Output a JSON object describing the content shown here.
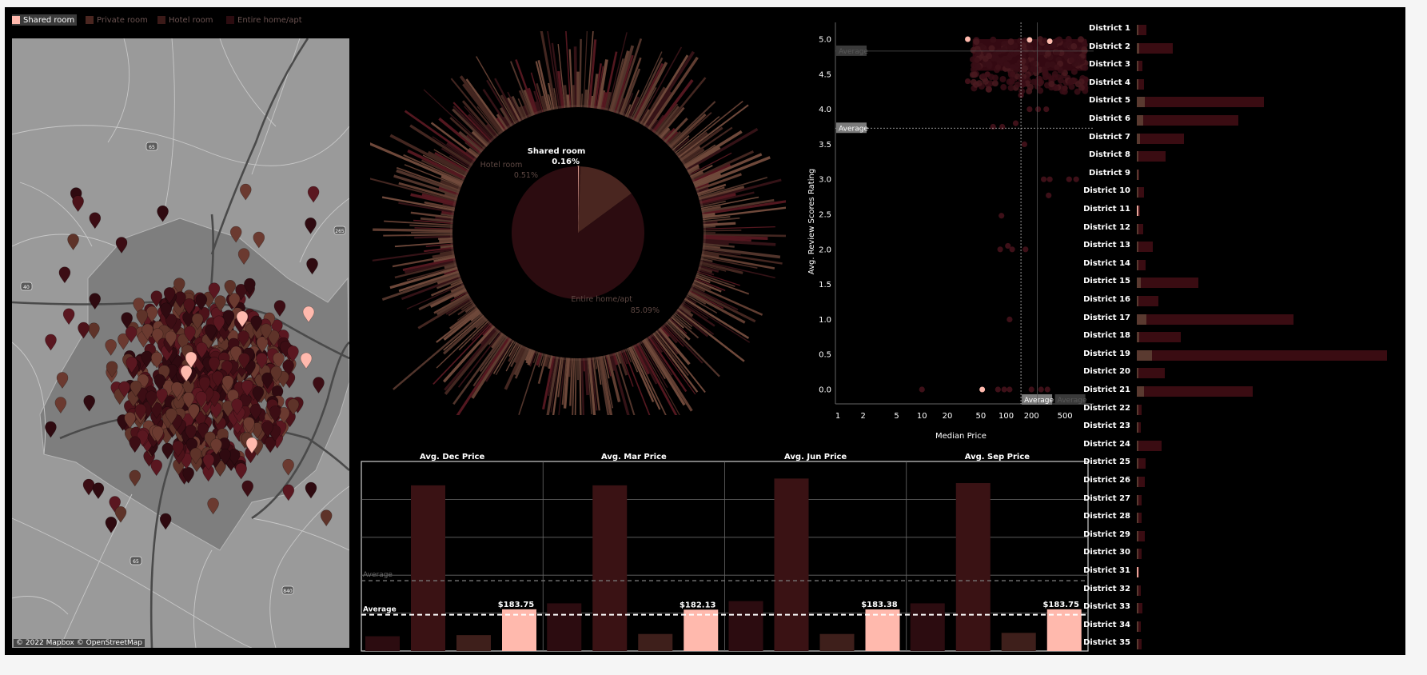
{
  "legend": [
    {
      "label": "Shared room",
      "color": "#ffb9ad",
      "selected": true
    },
    {
      "label": "Private room",
      "color": "#4a2620",
      "selected": false
    },
    {
      "label": "Hotel room",
      "color": "#3b1a18",
      "selected": false
    },
    {
      "label": "Entire home/apt",
      "color": "#2c0c10",
      "selected": false
    }
  ],
  "map": {
    "credit": "© 2022 Mapbox © OpenStreetMap",
    "road_shields": [
      "65",
      "265",
      "40",
      "65",
      "840"
    ]
  },
  "chart_data": [
    {
      "id": "room-type-pie",
      "type": "pie",
      "categories": [
        "Shared room",
        "Hotel room",
        "Private room",
        "Entire home/apt"
      ],
      "values": [
        0.16,
        0.51,
        14.24,
        85.09
      ],
      "labels": [
        {
          "name": "Shared room",
          "value": "0.16%"
        },
        {
          "name": "Hotel room",
          "value": "0.51%"
        },
        {
          "name": "Entire home/apt",
          "value": "85.09%"
        }
      ],
      "colors": [
        "#ffb9ad",
        "#3b1a18",
        "#4a2620",
        "#2c0c10"
      ]
    },
    {
      "id": "rating-vs-price",
      "type": "scatter",
      "xlabel": "Median Price",
      "ylabel": "Avg. Review Scores Rating",
      "xscale": "log",
      "xticks": [
        1,
        2,
        5,
        10,
        20,
        50,
        100,
        200,
        500
      ],
      "yticks": [
        0.0,
        0.5,
        1.0,
        1.5,
        2.0,
        2.5,
        3.0,
        3.5,
        4.0,
        4.5,
        5.0
      ],
      "xlim": [
        1,
        900
      ],
      "ylim": [
        0,
        5.1
      ],
      "reference_lines": [
        {
          "axis": "y",
          "value": 3.73,
          "label": "Average"
        },
        {
          "axis": "y",
          "value": 4.83,
          "label": "Average"
        },
        {
          "axis": "x",
          "value": 150,
          "label": "Average"
        },
        {
          "axis": "x",
          "value": 235,
          "label": "Average"
        }
      ],
      "points_highlight": [
        [
          35,
          5.0
        ],
        [
          190,
          4.99
        ],
        [
          330,
          4.97
        ],
        [
          52,
          0.0
        ]
      ],
      "points_other": [
        [
          10,
          0
        ],
        [
          80,
          0
        ],
        [
          95,
          0
        ],
        [
          110,
          0
        ],
        [
          200,
          0
        ],
        [
          260,
          0
        ],
        [
          310,
          0
        ],
        [
          110,
          1.0
        ],
        [
          88,
          2.48
        ],
        [
          85,
          2.0
        ],
        [
          105,
          2.05
        ],
        [
          118,
          2.0
        ],
        [
          170,
          2.0
        ],
        [
          280,
          3.0
        ],
        [
          330,
          3.0
        ],
        [
          560,
          3.0
        ],
        [
          680,
          3.0
        ],
        [
          320,
          2.77
        ],
        [
          165,
          3.5
        ],
        [
          70,
          3.75
        ],
        [
          90,
          3.75
        ],
        [
          130,
          3.8
        ],
        [
          240,
          4.0
        ],
        [
          300,
          4.0
        ],
        [
          190,
          4.0
        ],
        [
          60,
          4.5
        ],
        [
          45,
          4.7
        ],
        [
          80,
          4.6
        ],
        [
          120,
          4.5
        ],
        [
          250,
          4.4
        ],
        [
          400,
          4.6
        ],
        [
          600,
          4.7
        ],
        [
          150,
          4.2
        ],
        [
          500,
          4.3
        ],
        [
          35,
          4.4
        ]
      ],
      "dense_region": {
        "x_from": 40,
        "x_to": 900,
        "y_from": 4.55,
        "y_to": 5.0
      }
    },
    {
      "id": "seasonal-price",
      "type": "bar",
      "panels": [
        "Avg. Dec Price",
        "Avg. Mar Price",
        "Avg. Jun Price",
        "Avg. Sep Price"
      ],
      "categories": [
        "Entire home/apt",
        "Private room",
        "Hotel room",
        "Shared room"
      ],
      "series": [
        {
          "name": "Avg. Dec Price",
          "values": [
            65,
            730,
            70,
            183.75
          ]
        },
        {
          "name": "Avg. Mar Price",
          "values": [
            210,
            730,
            75,
            182.13
          ]
        },
        {
          "name": "Avg. Jun Price",
          "values": [
            220,
            760,
            75,
            183.38
          ]
        },
        {
          "name": "Avg. Sep Price",
          "values": [
            210,
            740,
            80,
            183.75
          ]
        }
      ],
      "value_labels": [
        "$183.75",
        "$182.13",
        "$183.38",
        "$183.75"
      ],
      "reference_lines": [
        {
          "value": 160,
          "label": "Average"
        },
        {
          "value": 310,
          "label": "Average"
        }
      ],
      "bar_colors": [
        "#2c0c10",
        "#3a1214",
        "#3e1f1b",
        "#ffb9ad"
      ],
      "ylim": [
        0,
        800
      ]
    },
    {
      "id": "districts",
      "type": "bar",
      "orientation": "horizontal",
      "categories": [
        "District 1",
        "District 2",
        "District 3",
        "District 4",
        "District 5",
        "District 6",
        "District 7",
        "District 8",
        "District 9",
        "District 10",
        "District 11",
        "District 12",
        "District 13",
        "District 14",
        "District 15",
        "District 16",
        "District 17",
        "District 18",
        "District 19",
        "District 20",
        "District 21",
        "District 22",
        "District 23",
        "District 24",
        "District 25",
        "District 26",
        "District 27",
        "District 28",
        "District 29",
        "District 30",
        "District 31",
        "District 32",
        "District 33",
        "District 34",
        "District 35"
      ],
      "values": [
        12,
        45,
        7,
        9,
        159,
        127,
        59,
        36,
        3,
        9,
        4,
        8,
        20,
        11,
        77,
        27,
        196,
        55,
        313,
        35,
        145,
        6,
        5,
        31,
        11,
        10,
        6,
        6,
        10,
        6,
        3,
        5,
        7,
        5,
        6
      ],
      "highlight_values": [
        0,
        0,
        0,
        0,
        0,
        0,
        0,
        0,
        0,
        0,
        1,
        0,
        0,
        0,
        0,
        0,
        0,
        0,
        0,
        0,
        0,
        0,
        0,
        0,
        0,
        0,
        0,
        0,
        0,
        0,
        1,
        0,
        0,
        0,
        0
      ],
      "colors": [
        "#3a0c12",
        "#5a3a30",
        "#e8a598"
      ]
    }
  ]
}
